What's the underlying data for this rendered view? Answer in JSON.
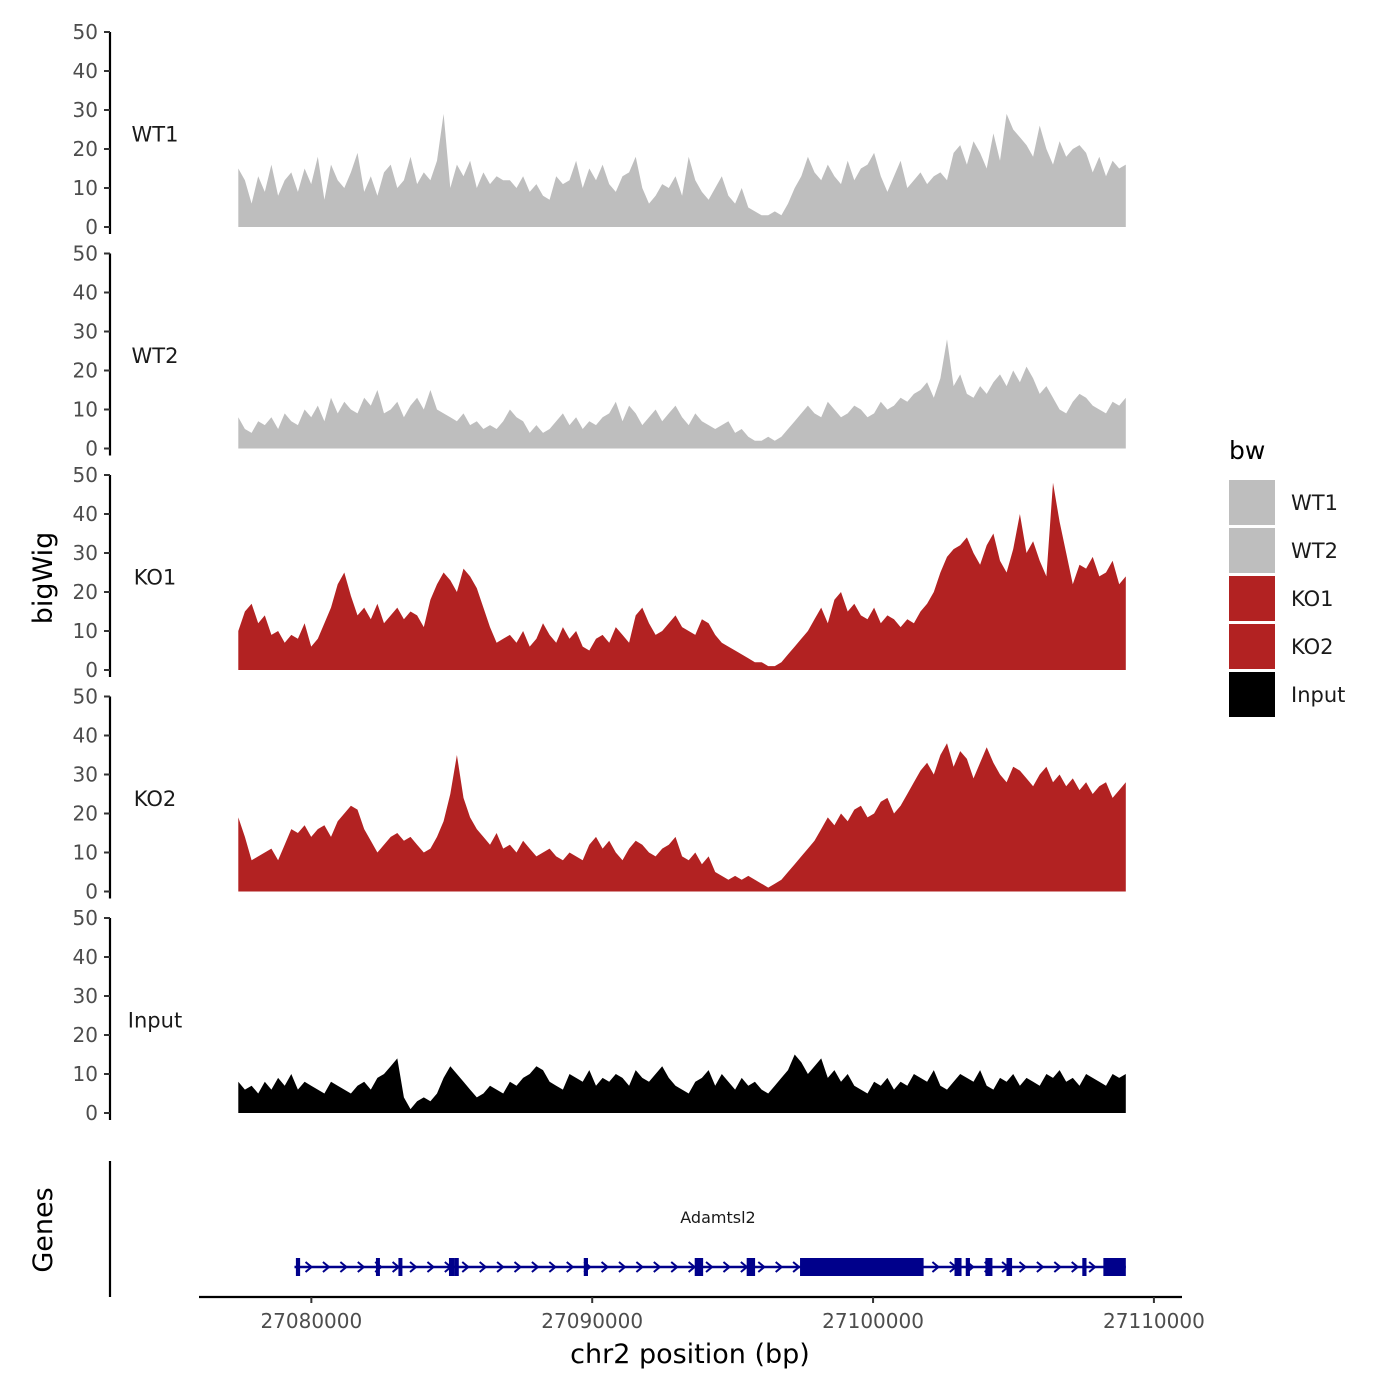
{
  "chart_data": {
    "type": "area",
    "title": "",
    "xlabel": "chr2 position (bp)",
    "ylabel": "bigWig",
    "ylim": [
      0,
      50
    ],
    "yticks": [
      "0",
      "10",
      "20",
      "30",
      "40",
      "50"
    ],
    "xlim": [
      27076000,
      27111000
    ],
    "xticks": [
      {
        "value": 27080000,
        "label": "27080000"
      },
      {
        "value": 27090000,
        "label": "27090000"
      },
      {
        "value": 27100000,
        "label": "27100000"
      },
      {
        "value": 27110000,
        "label": "27110000"
      }
    ],
    "x_start": 27077400,
    "x_end": 27109000,
    "legend": {
      "title": "bw",
      "position": "right",
      "entries": [
        {
          "label": "WT1",
          "color": "#BEBEBE"
        },
        {
          "label": "WT2",
          "color": "#BEBEBE"
        },
        {
          "label": "KO1",
          "color": "#B22222"
        },
        {
          "label": "KO2",
          "color": "#B22222"
        },
        {
          "label": "Input",
          "color": "#000000"
        }
      ]
    },
    "series": [
      {
        "name": "WT1",
        "color": "#BEBEBE",
        "values": [
          15,
          12,
          6,
          13,
          9,
          16,
          8,
          12,
          14,
          9,
          15,
          11,
          18,
          7,
          16,
          12,
          10,
          14,
          19,
          9,
          13,
          8,
          14,
          16,
          10,
          12,
          18,
          11,
          14,
          12,
          17,
          29,
          10,
          16,
          13,
          17,
          10,
          14,
          11,
          13,
          12,
          12,
          10,
          13,
          9,
          11,
          8,
          7,
          13,
          11,
          12,
          17,
          10,
          15,
          12,
          16,
          11,
          9,
          13,
          14,
          18,
          10,
          6,
          8,
          11,
          10,
          13,
          8,
          18,
          12,
          9,
          7,
          10,
          13,
          8,
          6,
          10,
          5,
          4,
          3,
          3,
          4,
          3,
          6,
          10,
          13,
          18,
          14,
          12,
          16,
          13,
          11,
          17,
          12,
          15,
          16,
          19,
          13,
          9,
          13,
          17,
          10,
          12,
          14,
          11,
          13,
          14,
          12,
          19,
          21,
          16,
          22,
          19,
          15,
          24,
          17,
          29,
          25,
          23,
          21,
          18,
          26,
          20,
          16,
          22,
          18,
          20,
          21,
          19,
          14,
          18,
          13,
          17,
          15,
          16
        ]
      },
      {
        "name": "WT2",
        "color": "#BEBEBE",
        "values": [
          8,
          5,
          4,
          7,
          6,
          8,
          5,
          9,
          7,
          6,
          10,
          8,
          11,
          7,
          13,
          9,
          12,
          10,
          9,
          13,
          11,
          15,
          9,
          10,
          12,
          8,
          11,
          13,
          10,
          15,
          10,
          9,
          8,
          7,
          9,
          6,
          7,
          5,
          6,
          5,
          7,
          10,
          8,
          7,
          4,
          6,
          4,
          5,
          7,
          9,
          6,
          8,
          5,
          7,
          6,
          8,
          9,
          12,
          7,
          11,
          9,
          6,
          8,
          10,
          7,
          9,
          11,
          8,
          6,
          9,
          7,
          6,
          5,
          6,
          7,
          4,
          5,
          3,
          2,
          2,
          3,
          2,
          3,
          5,
          7,
          9,
          11,
          9,
          8,
          12,
          10,
          8,
          9,
          11,
          10,
          8,
          9,
          12,
          10,
          11,
          13,
          12,
          14,
          15,
          17,
          13,
          18,
          28,
          16,
          19,
          14,
          13,
          16,
          14,
          17,
          19,
          16,
          20,
          17,
          21,
          18,
          14,
          16,
          13,
          10,
          9,
          12,
          14,
          13,
          11,
          10,
          9,
          12,
          11,
          13
        ]
      },
      {
        "name": "KO1",
        "color": "#B22222",
        "values": [
          10,
          15,
          17,
          12,
          14,
          9,
          10,
          7,
          9,
          8,
          12,
          6,
          8,
          12,
          16,
          22,
          25,
          19,
          14,
          16,
          13,
          17,
          12,
          14,
          16,
          13,
          15,
          14,
          11,
          18,
          22,
          25,
          23,
          20,
          26,
          24,
          21,
          16,
          11,
          7,
          8,
          9,
          7,
          10,
          6,
          8,
          12,
          9,
          7,
          11,
          8,
          10,
          6,
          5,
          8,
          9,
          7,
          11,
          9,
          7,
          14,
          16,
          12,
          9,
          10,
          12,
          14,
          11,
          10,
          9,
          13,
          12,
          9,
          7,
          6,
          5,
          4,
          3,
          2,
          2,
          1,
          1,
          2,
          4,
          6,
          8,
          10,
          13,
          16,
          12,
          18,
          20,
          15,
          17,
          14,
          13,
          16,
          12,
          14,
          13,
          11,
          13,
          12,
          15,
          17,
          20,
          25,
          29,
          31,
          32,
          34,
          30,
          27,
          32,
          35,
          28,
          25,
          31,
          40,
          30,
          33,
          28,
          24,
          48,
          38,
          30,
          22,
          27,
          26,
          29,
          24,
          25,
          28,
          22,
          24
        ]
      },
      {
        "name": "KO2",
        "color": "#B22222",
        "values": [
          19,
          14,
          8,
          9,
          10,
          11,
          8,
          12,
          16,
          15,
          17,
          14,
          16,
          17,
          14,
          18,
          20,
          22,
          21,
          16,
          13,
          10,
          12,
          14,
          15,
          13,
          14,
          12,
          10,
          11,
          14,
          18,
          25,
          35,
          24,
          19,
          16,
          14,
          12,
          15,
          11,
          12,
          10,
          13,
          11,
          9,
          10,
          11,
          9,
          8,
          10,
          9,
          8,
          12,
          14,
          11,
          13,
          10,
          8,
          11,
          13,
          12,
          10,
          9,
          11,
          12,
          14,
          9,
          8,
          10,
          7,
          9,
          5,
          4,
          3,
          4,
          3,
          4,
          3,
          2,
          1,
          2,
          3,
          5,
          7,
          9,
          11,
          13,
          16,
          19,
          17,
          20,
          18,
          21,
          22,
          19,
          20,
          23,
          24,
          20,
          22,
          25,
          28,
          31,
          33,
          30,
          35,
          38,
          32,
          36,
          34,
          29,
          33,
          37,
          33,
          30,
          28,
          32,
          31,
          29,
          27,
          30,
          32,
          28,
          30,
          27,
          29,
          26,
          28,
          25,
          27,
          28,
          24,
          26,
          28
        ]
      },
      {
        "name": "Input",
        "color": "#000000",
        "values": [
          8,
          6,
          7,
          5,
          8,
          6,
          9,
          7,
          10,
          6,
          8,
          7,
          6,
          5,
          8,
          7,
          6,
          5,
          7,
          8,
          6,
          9,
          10,
          12,
          14,
          4,
          1,
          3,
          4,
          3,
          5,
          9,
          12,
          10,
          8,
          6,
          4,
          5,
          7,
          6,
          5,
          8,
          7,
          9,
          10,
          12,
          11,
          8,
          7,
          6,
          10,
          9,
          8,
          11,
          7,
          9,
          8,
          10,
          9,
          7,
          11,
          9,
          8,
          10,
          12,
          9,
          7,
          6,
          5,
          8,
          9,
          11,
          7,
          10,
          8,
          6,
          9,
          7,
          8,
          6,
          5,
          7,
          9,
          11,
          15,
          13,
          10,
          12,
          14,
          9,
          11,
          8,
          10,
          7,
          6,
          5,
          8,
          7,
          9,
          6,
          8,
          7,
          10,
          9,
          8,
          11,
          7,
          6,
          8,
          10,
          9,
          8,
          11,
          7,
          6,
          9,
          8,
          10,
          7,
          9,
          8,
          7,
          10,
          9,
          11,
          8,
          9,
          7,
          10,
          9,
          8,
          7,
          10,
          9,
          10
        ]
      }
    ],
    "gene_track": {
      "label": "Genes",
      "gene_name": "Adamtsl2",
      "strand": "+",
      "start": 27079400,
      "end": 27109000,
      "exons": [
        {
          "start": 27079450,
          "end": 27079600
        },
        {
          "start": 27082300,
          "end": 27082400
        },
        {
          "start": 27083100,
          "end": 27083200
        },
        {
          "start": 27084900,
          "end": 27085100
        },
        {
          "start": 27085100,
          "end": 27085250
        },
        {
          "start": 27089700,
          "end": 27089850
        },
        {
          "start": 27093650,
          "end": 27093950
        },
        {
          "start": 27095500,
          "end": 27095800
        },
        {
          "start": 27097400,
          "end": 27101800
        },
        {
          "start": 27102900,
          "end": 27103150
        },
        {
          "start": 27103300,
          "end": 27103450
        },
        {
          "start": 27104000,
          "end": 27104250
        },
        {
          "start": 27104750,
          "end": 27104950
        },
        {
          "start": 27107450,
          "end": 27107600
        },
        {
          "start": 27108200,
          "end": 27109000
        }
      ]
    }
  }
}
